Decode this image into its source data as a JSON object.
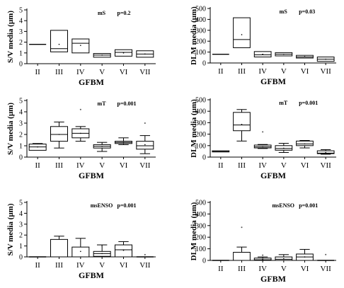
{
  "chart_data": [
    {
      "type": "box",
      "title": "mS",
      "pvalue": "p=0.2",
      "ylabel": "S/V media (µm)",
      "xlabel": "GFBM",
      "ylim": [
        0,
        5
      ],
      "yticks": [
        "0",
        "1",
        "2",
        "3",
        "4",
        "5"
      ],
      "categories": [
        "II",
        "III",
        "IV",
        "V",
        "VI",
        "VII"
      ],
      "boxes": [
        {
          "min": 1.8,
          "q1": 1.8,
          "median": 1.8,
          "q3": 1.8,
          "max": 1.8,
          "mean": null,
          "outliers": []
        },
        {
          "min": 1.1,
          "q1": 1.1,
          "median": 1.4,
          "q3": 3.1,
          "max": 3.1,
          "mean": 1.8,
          "outliers": []
        },
        {
          "min": 1.0,
          "q1": 1.0,
          "median": 1.9,
          "q3": 2.3,
          "max": 2.3,
          "mean": 1.7,
          "outliers": []
        },
        {
          "min": 0.6,
          "q1": 0.6,
          "median": 0.8,
          "q3": 0.95,
          "max": 0.95,
          "mean": 0.8,
          "outliers": []
        },
        {
          "min": 0.7,
          "q1": 0.7,
          "median": 1.05,
          "q3": 1.3,
          "max": 1.3,
          "mean": 1.0,
          "outliers": []
        },
        {
          "min": 0.6,
          "q1": 0.6,
          "median": 0.9,
          "q3": 1.2,
          "max": 1.2,
          "mean": 0.9,
          "outliers": []
        }
      ]
    },
    {
      "type": "box",
      "title": "mS",
      "pvalue": "p=0.03",
      "ylabel": "DLM media (µm)",
      "xlabel": "GFBM",
      "ylim": [
        0,
        500
      ],
      "yticks": [
        "0",
        "100",
        "200",
        "300",
        "400",
        "500"
      ],
      "categories": [
        "II",
        "III",
        "IV",
        "V",
        "VI",
        "VII"
      ],
      "boxes": [
        {
          "min": 80,
          "q1": 80,
          "median": 80,
          "q3": 80,
          "max": 80,
          "mean": null,
          "outliers": []
        },
        {
          "min": 140,
          "q1": 140,
          "median": 215,
          "q3": 415,
          "max": 415,
          "mean": 260,
          "outliers": []
        },
        {
          "min": 55,
          "q1": 55,
          "median": 75,
          "q3": 105,
          "max": 105,
          "mean": 80,
          "outliers": []
        },
        {
          "min": 65,
          "q1": 65,
          "median": 80,
          "q3": 95,
          "max": 95,
          "mean": 80,
          "outliers": []
        },
        {
          "min": 45,
          "q1": 45,
          "median": 55,
          "q3": 70,
          "max": 70,
          "mean": 58,
          "outliers": []
        },
        {
          "min": 15,
          "q1": 15,
          "median": 35,
          "q3": 55,
          "max": 55,
          "mean": 35,
          "outliers": []
        }
      ]
    },
    {
      "type": "box",
      "title": "mT",
      "pvalue": "p=0.001",
      "ylabel": "S/V media (µm)",
      "xlabel": "GFBM",
      "ylim": [
        0,
        5
      ],
      "yticks": [
        "0",
        "1",
        "2",
        "3",
        "4",
        "5"
      ],
      "categories": [
        "II",
        "III",
        "IV",
        "V",
        "VI",
        "VII"
      ],
      "boxes": [
        {
          "min": 0.6,
          "q1": 0.6,
          "median": 0.9,
          "q3": 1.15,
          "max": 1.2,
          "mean": 0.9,
          "outliers": []
        },
        {
          "min": 0.8,
          "q1": 1.4,
          "median": 2.0,
          "q3": 2.7,
          "max": 3.1,
          "mean": 2.0,
          "outliers": []
        },
        {
          "min": 1.4,
          "q1": 1.7,
          "median": 2.1,
          "q3": 2.5,
          "max": 2.7,
          "mean": 2.1,
          "outliers": [
            4.2
          ]
        },
        {
          "min": 0.5,
          "q1": 0.8,
          "median": 0.95,
          "q3": 1.1,
          "max": 1.3,
          "mean": 0.95,
          "outliers": []
        },
        {
          "min": 1.1,
          "q1": 1.2,
          "median": 1.3,
          "q3": 1.4,
          "max": 1.7,
          "mean": 1.3,
          "outliers": []
        },
        {
          "min": 0.3,
          "q1": 0.7,
          "median": 1.0,
          "q3": 1.4,
          "max": 1.9,
          "mean": 1.1,
          "outliers": [
            3.0
          ]
        }
      ]
    },
    {
      "type": "box",
      "title": "mT",
      "pvalue": "p=0.001",
      "ylabel": "DLM media (µm)",
      "xlabel": "GFBM",
      "ylim": [
        0,
        500
      ],
      "yticks": [
        "0",
        "100",
        "200",
        "300",
        "400",
        "500"
      ],
      "categories": [
        "II",
        "III",
        "IV",
        "V",
        "VI",
        "VII"
      ],
      "boxes": [
        {
          "min": 45,
          "q1": 45,
          "median": 48,
          "q3": 55,
          "max": 55,
          "mean": null,
          "outliers": []
        },
        {
          "min": 140,
          "q1": 230,
          "median": 280,
          "q3": 390,
          "max": 415,
          "mean": 285,
          "outliers": []
        },
        {
          "min": 75,
          "q1": 80,
          "median": 90,
          "q3": 105,
          "max": 110,
          "mean": 90,
          "outliers": [
            220
          ]
        },
        {
          "min": 40,
          "q1": 60,
          "median": 75,
          "q3": 100,
          "max": 120,
          "mean": 78,
          "outliers": []
        },
        {
          "min": 80,
          "q1": 100,
          "median": 115,
          "q3": 140,
          "max": 145,
          "mean": 115,
          "outliers": []
        },
        {
          "min": 25,
          "q1": 30,
          "median": 35,
          "q3": 55,
          "max": 65,
          "mean": 40,
          "outliers": []
        }
      ]
    },
    {
      "type": "box",
      "title": "msENSO",
      "pvalue": "p=0.001",
      "ylabel": "S/V media (µm)",
      "xlabel": "GFBM",
      "ylim": [
        0,
        5
      ],
      "yticks": [
        "0",
        "1",
        "2",
        "3",
        "4",
        "5"
      ],
      "categories": [
        "II",
        "III",
        "IV",
        "V",
        "VI",
        "VII"
      ],
      "boxes": [
        {
          "min": 0.0,
          "q1": 0.0,
          "median": 0.0,
          "q3": 0.0,
          "max": 0.0,
          "mean": null,
          "outliers": []
        },
        {
          "min": 0.0,
          "q1": 0.0,
          "median": 0.0,
          "q3": 1.6,
          "max": 1.9,
          "mean": null,
          "outliers": []
        },
        {
          "min": 0.0,
          "q1": 0.0,
          "median": 0.0,
          "q3": 0.9,
          "max": 1.7,
          "mean": 0.5,
          "outliers": []
        },
        {
          "min": 0.0,
          "q1": 0.05,
          "median": 0.3,
          "q3": 0.5,
          "max": 1.1,
          "mean": 0.3,
          "outliers": [
            1.0
          ]
        },
        {
          "min": 0.0,
          "q1": 0.0,
          "median": 0.65,
          "q3": 1.1,
          "max": 1.4,
          "mean": 0.6,
          "outliers": []
        },
        {
          "min": 0.0,
          "q1": 0.0,
          "median": 0.0,
          "q3": 0.0,
          "max": 0.0,
          "mean": null,
          "outliers": [
            0.2
          ]
        }
      ]
    },
    {
      "type": "box",
      "title": "msENSO",
      "pvalue": "p=0.001",
      "ylabel": "DLM media (µm)",
      "xlabel": "GFBM",
      "ylim": [
        0,
        500
      ],
      "yticks": [
        "0",
        "100",
        "200",
        "300",
        "400",
        "500"
      ],
      "categories": [
        "II",
        "III",
        "IV",
        "V",
        "VI",
        "VII"
      ],
      "boxes": [
        {
          "min": 0,
          "q1": 0,
          "median": 0,
          "q3": 0,
          "max": 0,
          "mean": null,
          "outliers": []
        },
        {
          "min": 0,
          "q1": 0,
          "median": 0,
          "q3": 70,
          "max": 115,
          "mean": null,
          "outliers": [
            285
          ]
        },
        {
          "min": 0,
          "q1": 0,
          "median": 5,
          "q3": 20,
          "max": 30,
          "mean": 10,
          "outliers": [
            45
          ]
        },
        {
          "min": 0,
          "q1": 0,
          "median": 10,
          "q3": 30,
          "max": 50,
          "mean": 15,
          "outliers": []
        },
        {
          "min": 0,
          "q1": 0,
          "median": 30,
          "q3": 55,
          "max": 95,
          "mean": 30,
          "outliers": []
        },
        {
          "min": 0,
          "q1": 0,
          "median": 0,
          "q3": 0,
          "max": 0,
          "mean": null,
          "outliers": [
            50
          ]
        }
      ]
    }
  ]
}
